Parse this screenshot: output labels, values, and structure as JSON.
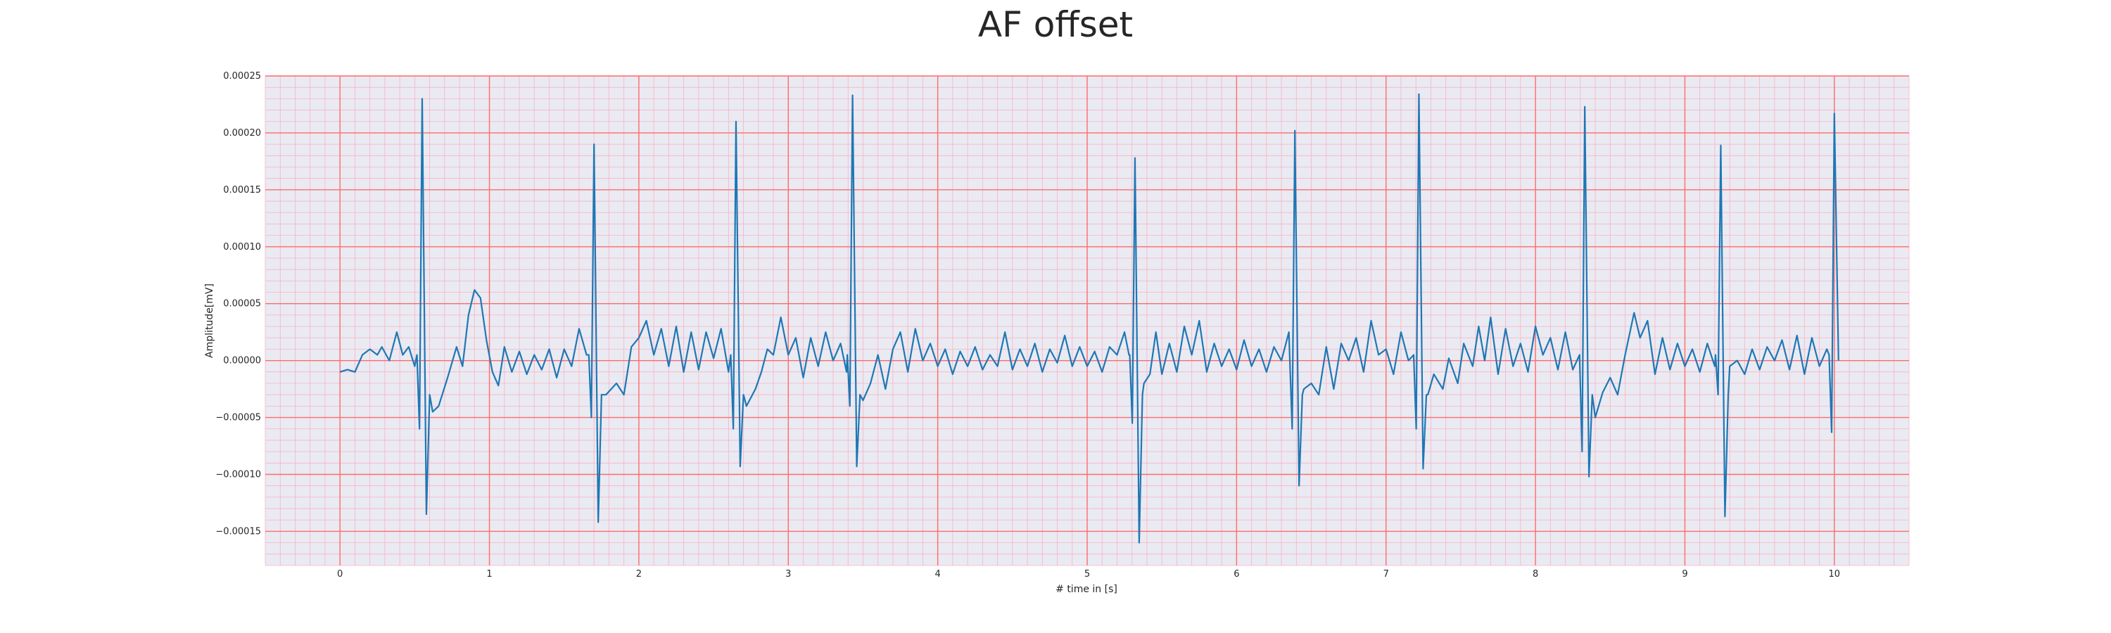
{
  "chart_data": {
    "type": "line",
    "title": "AF offset",
    "xlabel": "# time in [s]",
    "ylabel": "Amplitude[mV]",
    "xlim": [
      -0.5,
      10.5
    ],
    "ylim": [
      -0.00018,
      0.00025
    ],
    "xticks": [
      0,
      1,
      2,
      3,
      4,
      5,
      6,
      7,
      8,
      9,
      10
    ],
    "xtick_labels": [
      "0",
      "1",
      "2",
      "3",
      "4",
      "5",
      "6",
      "7",
      "8",
      "9",
      "10"
    ],
    "yticks": [
      -0.00015,
      -0.0001,
      -5e-05,
      0,
      5e-05,
      0.0001,
      0.00015,
      0.0002,
      0.00025
    ],
    "ytick_labels": [
      "−0.00015",
      "−0.00010",
      "−0.00005",
      "0.00000",
      "0.00005",
      "0.00010",
      "0.00015",
      "0.00020",
      "0.00025"
    ],
    "grid": true,
    "background_color": "#eaeaf2",
    "major_grid_color": "#ff6b6b",
    "minor_grid_color": "#f7b3c2",
    "series": [
      {
        "color": "#1f77b4",
        "beats": [
          {
            "t": 0.55,
            "neg_before": -6e-05,
            "peak": 0.00023,
            "neg_after": -0.000135
          },
          {
            "t": 1.7,
            "neg_before": -5e-05,
            "peak": 0.00019,
            "neg_after": -0.000142
          },
          {
            "t": 2.65,
            "neg_before": -6e-05,
            "peak": 0.00021,
            "neg_after": -9.3e-05
          },
          {
            "t": 3.43,
            "neg_before": -4e-05,
            "peak": 0.000233,
            "neg_after": -9.3e-05
          },
          {
            "t": 5.32,
            "neg_before": -5.5e-05,
            "peak": 0.000178,
            "neg_after": -0.00016
          },
          {
            "t": 6.39,
            "neg_before": -6e-05,
            "peak": 0.000202,
            "neg_after": -0.00011
          },
          {
            "t": 7.22,
            "neg_before": -6e-05,
            "peak": 0.000234,
            "neg_after": -9.5e-05
          },
          {
            "t": 8.33,
            "neg_before": -8e-05,
            "peak": 0.000223,
            "neg_after": -0.000102
          },
          {
            "t": 9.24,
            "neg_before": -3e-05,
            "peak": 0.000189,
            "neg_after": -0.000137
          },
          {
            "t": 10.0,
            "neg_before": -6.3e-05,
            "peak": 0.000217,
            "neg_after": 0.0
          }
        ],
        "baseline": [
          [
            0.0,
            -1e-05
          ],
          [
            0.05,
            -8e-06
          ],
          [
            0.1,
            -1e-05
          ],
          [
            0.15,
            5e-06
          ],
          [
            0.2,
            1e-05
          ],
          [
            0.25,
            5e-06
          ],
          [
            0.28,
            1.2e-05
          ],
          [
            0.33,
            0.0
          ],
          [
            0.38,
            2.5e-05
          ],
          [
            0.42,
            5e-06
          ],
          [
            0.46,
            1.2e-05
          ],
          [
            0.5,
            -5e-06
          ],
          [
            0.62,
            -4.5e-05
          ],
          [
            0.66,
            -4e-05
          ],
          [
            0.72,
            -1.5e-05
          ],
          [
            0.78,
            1.2e-05
          ],
          [
            0.82,
            -5e-06
          ],
          [
            0.86,
            4e-05
          ],
          [
            0.9,
            6.2e-05
          ],
          [
            0.94,
            5.5e-05
          ],
          [
            0.98,
            1.8e-05
          ],
          [
            1.02,
            -1e-05
          ],
          [
            1.06,
            -2.2e-05
          ],
          [
            1.1,
            1.2e-05
          ],
          [
            1.15,
            -1e-05
          ],
          [
            1.2,
            8e-06
          ],
          [
            1.25,
            -1.2e-05
          ],
          [
            1.3,
            5e-06
          ],
          [
            1.35,
            -8e-06
          ],
          [
            1.4,
            1e-05
          ],
          [
            1.45,
            -1.5e-05
          ],
          [
            1.5,
            1e-05
          ],
          [
            1.55,
            -5e-06
          ],
          [
            1.6,
            2.8e-05
          ],
          [
            1.65,
            5e-06
          ],
          [
            1.78,
            -3e-05
          ],
          [
            1.85,
            -2e-05
          ],
          [
            1.9,
            -3e-05
          ],
          [
            1.95,
            1.2e-05
          ],
          [
            2.0,
            2e-05
          ],
          [
            2.05,
            3.5e-05
          ],
          [
            2.1,
            5e-06
          ],
          [
            2.15,
            2.8e-05
          ],
          [
            2.2,
            -5e-06
          ],
          [
            2.25,
            3e-05
          ],
          [
            2.3,
            -1e-05
          ],
          [
            2.35,
            2.5e-05
          ],
          [
            2.4,
            -8e-06
          ],
          [
            2.45,
            2.5e-05
          ],
          [
            2.5,
            2e-06
          ],
          [
            2.55,
            2.8e-05
          ],
          [
            2.6,
            -1e-05
          ],
          [
            2.72,
            -4e-05
          ],
          [
            2.78,
            -2.5e-05
          ],
          [
            2.82,
            -1e-05
          ],
          [
            2.86,
            1e-05
          ],
          [
            2.9,
            5e-06
          ],
          [
            2.95,
            3.8e-05
          ],
          [
            3.0,
            5e-06
          ],
          [
            3.05,
            2e-05
          ],
          [
            3.1,
            -1.5e-05
          ],
          [
            3.15,
            2e-05
          ],
          [
            3.2,
            -5e-06
          ],
          [
            3.25,
            2.5e-05
          ],
          [
            3.3,
            0.0
          ],
          [
            3.35,
            1.5e-05
          ],
          [
            3.39,
            -1e-05
          ],
          [
            3.5,
            -3.5e-05
          ],
          [
            3.55,
            -2e-05
          ],
          [
            3.6,
            5e-06
          ],
          [
            3.65,
            -2.5e-05
          ],
          [
            3.7,
            1e-05
          ],
          [
            3.75,
            2.5e-05
          ],
          [
            3.8,
            -1e-05
          ],
          [
            3.85,
            2.8e-05
          ],
          [
            3.9,
            0.0
          ],
          [
            3.95,
            1.5e-05
          ],
          [
            4.0,
            -5e-06
          ],
          [
            4.05,
            1e-05
          ],
          [
            4.1,
            -1.2e-05
          ],
          [
            4.15,
            8e-06
          ],
          [
            4.2,
            -5e-06
          ],
          [
            4.25,
            1.2e-05
          ],
          [
            4.3,
            -8e-06
          ],
          [
            4.35,
            5e-06
          ],
          [
            4.4,
            -5e-06
          ],
          [
            4.45,
            2.5e-05
          ],
          [
            4.5,
            -8e-06
          ],
          [
            4.55,
            1e-05
          ],
          [
            4.6,
            -5e-06
          ],
          [
            4.65,
            1.5e-05
          ],
          [
            4.7,
            -1e-05
          ],
          [
            4.75,
            1e-05
          ],
          [
            4.8,
            -2e-06
          ],
          [
            4.85,
            2.2e-05
          ],
          [
            4.9,
            -5e-06
          ],
          [
            4.95,
            1.2e-05
          ],
          [
            5.0,
            -5e-06
          ],
          [
            5.05,
            8e-06
          ],
          [
            5.1,
            -1e-05
          ],
          [
            5.15,
            1.2e-05
          ],
          [
            5.2,
            5e-06
          ],
          [
            5.25,
            2.5e-05
          ],
          [
            5.28,
            5e-06
          ],
          [
            5.38,
            -2e-05
          ],
          [
            5.42,
            -1.2e-05
          ],
          [
            5.46,
            2.5e-05
          ],
          [
            5.5,
            -1.2e-05
          ],
          [
            5.55,
            1.5e-05
          ],
          [
            5.6,
            -1e-05
          ],
          [
            5.65,
            3e-05
          ],
          [
            5.7,
            5e-06
          ],
          [
            5.75,
            3.5e-05
          ],
          [
            5.8,
            -1e-05
          ],
          [
            5.85,
            1.5e-05
          ],
          [
            5.9,
            -5e-06
          ],
          [
            5.95,
            1e-05
          ],
          [
            6.0,
            -8e-06
          ],
          [
            6.05,
            1.8e-05
          ],
          [
            6.1,
            -5e-06
          ],
          [
            6.15,
            1e-05
          ],
          [
            6.2,
            -1e-05
          ],
          [
            6.25,
            1.2e-05
          ],
          [
            6.3,
            0.0
          ],
          [
            6.35,
            2.5e-05
          ],
          [
            6.45,
            -2.5e-05
          ],
          [
            6.5,
            -2e-05
          ],
          [
            6.55,
            -3e-05
          ],
          [
            6.6,
            1.2e-05
          ],
          [
            6.65,
            -2.5e-05
          ],
          [
            6.7,
            1.5e-05
          ],
          [
            6.75,
            0.0
          ],
          [
            6.8,
            2e-05
          ],
          [
            6.85,
            -1e-05
          ],
          [
            6.9,
            3.5e-05
          ],
          [
            6.95,
            5e-06
          ],
          [
            7.0,
            1e-05
          ],
          [
            7.05,
            -1.2e-05
          ],
          [
            7.1,
            2.5e-05
          ],
          [
            7.15,
            0.0
          ],
          [
            7.28,
            -3e-05
          ],
          [
            7.32,
            -1.2e-05
          ],
          [
            7.38,
            -2.5e-05
          ],
          [
            7.42,
            2e-06
          ],
          [
            7.48,
            -2e-05
          ],
          [
            7.52,
            1.5e-05
          ],
          [
            7.58,
            -5e-06
          ],
          [
            7.62,
            3e-05
          ],
          [
            7.66,
            0.0
          ],
          [
            7.7,
            3.8e-05
          ],
          [
            7.75,
            -1.2e-05
          ],
          [
            7.8,
            2.8e-05
          ],
          [
            7.85,
            -5e-06
          ],
          [
            7.9,
            1.5e-05
          ],
          [
            7.95,
            -1e-05
          ],
          [
            8.0,
            3e-05
          ],
          [
            8.05,
            5e-06
          ],
          [
            8.1,
            2e-05
          ],
          [
            8.15,
            -8e-06
          ],
          [
            8.2,
            2.5e-05
          ],
          [
            8.25,
            -8e-06
          ],
          [
            8.4,
            -5e-05
          ],
          [
            8.45,
            -2.8e-05
          ],
          [
            8.5,
            -1.5e-05
          ],
          [
            8.55,
            -3e-05
          ],
          [
            8.6,
            5e-06
          ],
          [
            8.66,
            4.2e-05
          ],
          [
            8.7,
            2e-05
          ],
          [
            8.75,
            3.5e-05
          ],
          [
            8.8,
            -1.2e-05
          ],
          [
            8.85,
            2e-05
          ],
          [
            8.9,
            -8e-06
          ],
          [
            8.95,
            1.5e-05
          ],
          [
            9.0,
            -5e-06
          ],
          [
            9.05,
            1e-05
          ],
          [
            9.1,
            -1e-05
          ],
          [
            9.15,
            1.5e-05
          ],
          [
            9.2,
            -5e-06
          ],
          [
            9.3,
            -5e-06
          ],
          [
            9.35,
            0.0
          ],
          [
            9.4,
            -1.2e-05
          ],
          [
            9.45,
            1e-05
          ],
          [
            9.5,
            -8e-06
          ],
          [
            9.55,
            1.2e-05
          ],
          [
            9.6,
            0.0
          ],
          [
            9.65,
            1.8e-05
          ],
          [
            9.7,
            -8e-06
          ],
          [
            9.75,
            2.2e-05
          ],
          [
            9.8,
            -1.2e-05
          ],
          [
            9.85,
            2e-05
          ],
          [
            9.9,
            -5e-06
          ],
          [
            9.95,
            1e-05
          ]
        ]
      }
    ]
  }
}
